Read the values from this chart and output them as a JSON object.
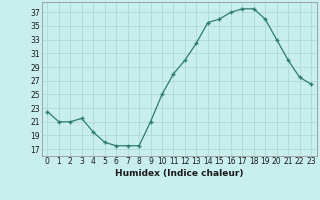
{
  "x": [
    0,
    1,
    2,
    3,
    4,
    5,
    6,
    7,
    8,
    9,
    10,
    11,
    12,
    13,
    14,
    15,
    16,
    17,
    18,
    19,
    20,
    21,
    22,
    23
  ],
  "y": [
    22.5,
    21,
    21,
    21.5,
    19.5,
    18,
    17.5,
    17.5,
    17.5,
    21,
    25,
    28,
    30,
    32.5,
    35.5,
    36,
    37,
    37.5,
    37.5,
    36,
    33,
    30,
    27.5,
    26.5
  ],
  "line_color": "#2e7d6e",
  "marker_color": "#2e7d6e",
  "bg_color": "#c8eeee",
  "grid_color": "#b0d8d8",
  "xlabel": "Humidex (Indice chaleur)",
  "ylabel_ticks": [
    17,
    19,
    21,
    23,
    25,
    27,
    29,
    31,
    33,
    35,
    37
  ],
  "ylim": [
    16.0,
    38.5
  ],
  "xlim": [
    -0.5,
    23.5
  ],
  "tick_fontsize": 5.5,
  "xlabel_fontsize": 6.5
}
